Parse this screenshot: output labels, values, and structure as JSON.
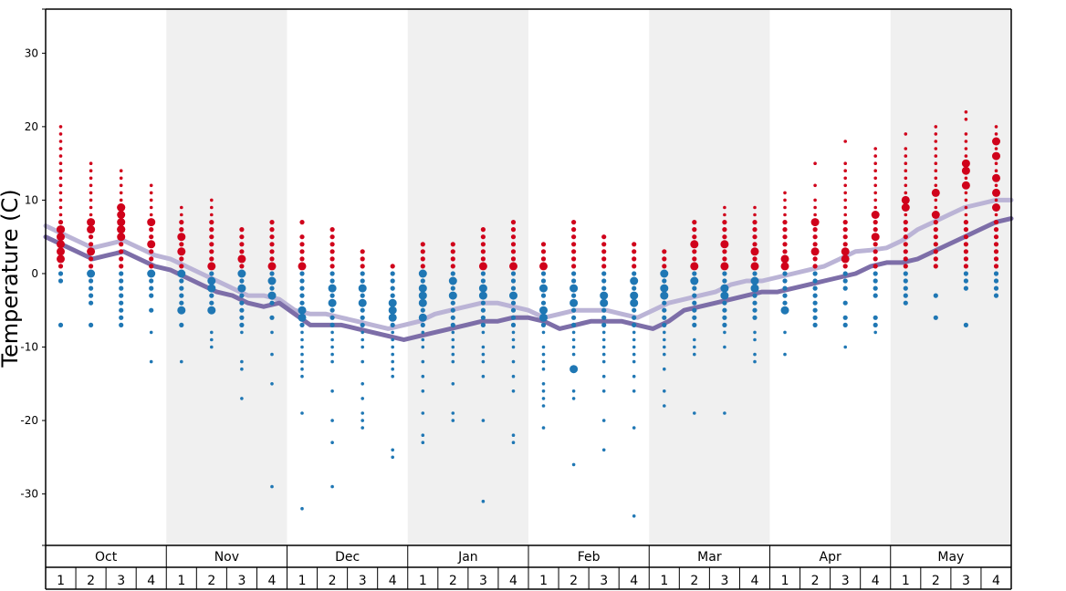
{
  "chart_data": {
    "type": "scatter",
    "title": "",
    "ylabel": "Temperature (C)",
    "xlabel": "",
    "ylim": [
      -37,
      36
    ],
    "yticks": [
      -30,
      -20,
      -10,
      0,
      10,
      20,
      30
    ],
    "months": [
      "Oct",
      "Nov",
      "Dec",
      "Jan",
      "Feb",
      "Mar",
      "Apr",
      "May"
    ],
    "weeks": [
      "1",
      "2",
      "3",
      "4"
    ],
    "shaded_months": [
      "Nov",
      "Jan",
      "Mar",
      "May"
    ],
    "colors": {
      "warm_points": "#d0021b",
      "cold_points": "#1f77b4",
      "upper_line": "#bbb4d6",
      "lower_line": "#7d6ea8",
      "band": "#f0f0f0"
    },
    "series": [
      {
        "values": [
          6.5,
          5.5,
          4.5,
          3.5,
          4,
          4.5,
          3.5,
          2.5,
          2,
          1,
          0,
          -1,
          -2,
          -3,
          -3,
          -3.5,
          -5,
          -5.5,
          -5.5,
          -6,
          -6.5,
          -7,
          -7.5,
          -7,
          -6.5,
          -5.5,
          -5,
          -4.5,
          -4,
          -4,
          -4.5,
          -5,
          -6,
          -5.5,
          -5,
          -5,
          -5,
          -5.5,
          -6,
          -5,
          -4,
          -3.5,
          -3,
          -2.5,
          -1.5,
          -1,
          -1,
          -0.5,
          0,
          0.5,
          1,
          2,
          3,
          3.2,
          3.5,
          4.5,
          6,
          7,
          8,
          9,
          9.5,
          10,
          10
        ]
      },
      {
        "values": [
          5,
          4,
          3,
          2,
          2.5,
          3,
          2,
          1,
          0.5,
          -0.5,
          -1.5,
          -2.5,
          -3,
          -4,
          -4.5,
          -4,
          -5.5,
          -7,
          -7,
          -7,
          -7.5,
          -8,
          -8.5,
          -9,
          -8.5,
          -8,
          -7.5,
          -7,
          -6.5,
          -6.5,
          -6,
          -6,
          -6.5,
          -7.5,
          -7,
          -6.5,
          -6.5,
          -6.5,
          -7,
          -7.5,
          -6.5,
          -5,
          -4.5,
          -4,
          -3.5,
          -3,
          -2.5,
          -2.5,
          -2,
          -1.5,
          -1,
          -0.5,
          0,
          1,
          1.5,
          1.5,
          2,
          3,
          4,
          5,
          6,
          7,
          7.5
        ]
      }
    ],
    "points": [
      {
        "week": 1,
        "values": [
          20,
          19,
          18,
          17,
          17,
          16,
          15,
          14,
          14,
          13,
          12,
          12,
          11,
          10,
          9,
          8,
          7,
          6,
          6,
          5,
          4,
          3,
          2,
          1,
          0,
          -1,
          -7
        ]
      },
      {
        "week": 2,
        "values": [
          15,
          14,
          13,
          12,
          11,
          10,
          9,
          8,
          7,
          6,
          5,
          4,
          3,
          2,
          1,
          0,
          -1,
          -2,
          -3,
          -4,
          -7
        ]
      },
      {
        "week": 3,
        "values": [
          14,
          13,
          12,
          11,
          10,
          9,
          9,
          8,
          7,
          6,
          6,
          5,
          4,
          3,
          2,
          1,
          0,
          -1,
          -2,
          -3,
          -4,
          -5,
          -6,
          -7
        ]
      },
      {
        "week": 4,
        "values": [
          12,
          11,
          10,
          9,
          8,
          7,
          6,
          5,
          4,
          3,
          2,
          1,
          0,
          -1,
          -2,
          -3,
          -5,
          -8,
          -12
        ]
      },
      {
        "week": 5,
        "values": [
          9,
          8,
          7,
          6,
          5,
          4,
          3,
          2,
          1,
          0,
          -1,
          -2,
          -3,
          -4,
          -5,
          -7,
          -12
        ]
      },
      {
        "week": 6,
        "values": [
          10,
          9,
          8,
          7,
          6,
          5,
          4,
          3,
          2,
          1,
          0,
          -1,
          -2,
          -3,
          -4,
          -5,
          -8,
          -9,
          -10
        ]
      },
      {
        "week": 7,
        "values": [
          6,
          5,
          4,
          3,
          2,
          1,
          0,
          -1,
          -2,
          -3,
          -4,
          -5,
          -6,
          -7,
          -8,
          -12,
          -13,
          -17
        ]
      },
      {
        "week": 8,
        "values": [
          7,
          6,
          5,
          4,
          3,
          2,
          1,
          0,
          -1,
          -2,
          -3,
          -4,
          -6,
          -8,
          -11,
          -15,
          -29
        ]
      },
      {
        "week": 9,
        "values": [
          7,
          5,
          4,
          3,
          2,
          1,
          0,
          -1,
          -2,
          -3,
          -4,
          -5,
          -6,
          -7,
          -8,
          -9,
          -10,
          -11,
          -12,
          -13,
          -14,
          -19,
          -32
        ]
      },
      {
        "week": 10,
        "values": [
          6,
          5,
          4,
          3,
          2,
          1,
          0,
          -1,
          -2,
          -3,
          -4,
          -5,
          -6,
          -7,
          -8,
          -9,
          -10,
          -11,
          -12,
          -16,
          -20,
          -23,
          -29
        ]
      },
      {
        "week": 11,
        "values": [
          3,
          2,
          1,
          0,
          -1,
          -2,
          -3,
          -4,
          -5,
          -6,
          -7,
          -8,
          -9,
          -10,
          -12,
          -15,
          -17,
          -19,
          -20,
          -21
        ]
      },
      {
        "week": 12,
        "values": [
          1,
          0,
          -1,
          -2,
          -3,
          -4,
          -5,
          -6,
          -7,
          -8,
          -9,
          -10,
          -11,
          -12,
          -13,
          -14,
          -24,
          -25
        ]
      },
      {
        "week": 13,
        "values": [
          4,
          3,
          2,
          1,
          0,
          -1,
          -2,
          -3,
          -4,
          -5,
          -6,
          -7,
          -8,
          -9,
          -10,
          -12,
          -14,
          -16,
          -19,
          -22,
          -23
        ]
      },
      {
        "week": 14,
        "values": [
          4,
          3,
          2,
          1,
          0,
          -1,
          -2,
          -3,
          -4,
          -5,
          -6,
          -7,
          -8,
          -9,
          -10,
          -11,
          -12,
          -15,
          -19,
          -20
        ]
      },
      {
        "week": 15,
        "values": [
          6,
          5,
          4,
          3,
          2,
          1,
          0,
          -1,
          -2,
          -3,
          -4,
          -5,
          -6,
          -7,
          -8,
          -10,
          -11,
          -12,
          -14,
          -20,
          -31
        ]
      },
      {
        "week": 16,
        "values": [
          7,
          6,
          5,
          4,
          3,
          2,
          1,
          0,
          -1,
          -2,
          -3,
          -4,
          -5,
          -6,
          -7,
          -8,
          -9,
          -10,
          -12,
          -14,
          -16,
          -22,
          -23
        ]
      },
      {
        "week": 17,
        "values": [
          4,
          3,
          2,
          1,
          0,
          -1,
          -2,
          -3,
          -4,
          -5,
          -6,
          -7,
          -8,
          -10,
          -11,
          -12,
          -13,
          -15,
          -16,
          -17,
          -18,
          -21
        ]
      },
      {
        "week": 18,
        "values": [
          7,
          6,
          5,
          4,
          3,
          2,
          1,
          0,
          -1,
          -2,
          -3,
          -4,
          -5,
          -6,
          -7,
          -8,
          -9,
          -10,
          -11,
          -13,
          -16,
          -17,
          -26
        ]
      },
      {
        "week": 19,
        "values": [
          5,
          4,
          3,
          2,
          1,
          0,
          -1,
          -2,
          -3,
          -4,
          -5,
          -6,
          -7,
          -8,
          -9,
          -10,
          -11,
          -12,
          -14,
          -16,
          -20,
          -24
        ]
      },
      {
        "week": 20,
        "values": [
          4,
          3,
          2,
          1,
          0,
          -1,
          -2,
          -3,
          -4,
          -5,
          -6,
          -7,
          -8,
          -9,
          -10,
          -11,
          -12,
          -14,
          -16,
          -21,
          -33
        ]
      },
      {
        "week": 21,
        "values": [
          3,
          2,
          1,
          0,
          -1,
          -2,
          -3,
          -4,
          -5,
          -6,
          -7,
          -8,
          -9,
          -10,
          -11,
          -13,
          -16,
          -18
        ]
      },
      {
        "week": 22,
        "values": [
          7,
          6,
          5,
          4,
          3,
          2,
          1,
          0,
          -1,
          -2,
          -3,
          -4,
          -5,
          -6,
          -7,
          -9,
          -10,
          -11,
          -19
        ]
      },
      {
        "week": 23,
        "values": [
          9,
          8,
          7,
          6,
          5,
          4,
          3,
          2,
          1,
          0,
          -1,
          -2,
          -3,
          -4,
          -5,
          -6,
          -7,
          -8,
          -10,
          -19
        ]
      },
      {
        "week": 24,
        "values": [
          9,
          8,
          7,
          6,
          5,
          4,
          3,
          2,
          1,
          0,
          -1,
          -2,
          -3,
          -4,
          -5,
          -6,
          -8,
          -9,
          -11,
          -12
        ]
      },
      {
        "week": 25,
        "values": [
          11,
          10,
          9,
          8,
          7,
          6,
          5,
          4,
          3,
          2,
          1,
          0,
          -1,
          -2,
          -3,
          -4,
          -5,
          -8,
          -11
        ]
      },
      {
        "week": 26,
        "values": [
          15,
          12,
          10,
          9,
          8,
          7,
          6,
          5,
          4,
          3,
          2,
          1,
          0,
          -1,
          -2,
          -3,
          -4,
          -5,
          -6,
          -7
        ]
      },
      {
        "week": 27,
        "values": [
          18,
          15,
          14,
          13,
          12,
          11,
          10,
          9,
          8,
          7,
          6,
          5,
          4,
          3,
          2,
          1,
          0,
          -1,
          -2,
          -4,
          -6,
          -7,
          -10
        ]
      },
      {
        "week": 28,
        "values": [
          17,
          16,
          15,
          14,
          13,
          12,
          11,
          10,
          9,
          8,
          7,
          6,
          5,
          4,
          3,
          2,
          1,
          0,
          -1,
          -2,
          -3,
          -6,
          -7,
          -8
        ]
      },
      {
        "week": 29,
        "values": [
          19,
          17,
          16,
          15,
          14,
          13,
          12,
          11,
          10,
          9,
          8,
          7,
          6,
          5,
          4,
          3,
          2,
          1,
          0,
          -1,
          -2,
          -3,
          -4
        ]
      },
      {
        "week": 30,
        "values": [
          20,
          19,
          18,
          17,
          16,
          15,
          14,
          13,
          12,
          11,
          10,
          9,
          8,
          7,
          6,
          5,
          4,
          3,
          2,
          1,
          -3,
          -6
        ]
      },
      {
        "week": 31,
        "values": [
          22,
          21,
          19,
          18,
          17,
          16,
          15,
          14,
          13,
          12,
          11,
          10,
          9,
          8,
          7,
          6,
          5,
          4,
          3,
          2,
          1,
          0,
          -1,
          -2,
          -7
        ]
      },
      {
        "week": 32,
        "values": [
          20,
          19,
          18,
          17,
          16,
          15,
          14,
          13,
          12,
          11,
          10,
          9,
          8,
          7,
          6,
          5,
          4,
          3,
          2,
          1,
          0,
          -1,
          -2,
          -3
        ]
      }
    ],
    "sizes": [
      {
        "week": 1,
        "large": [
          6,
          5,
          3,
          4,
          2
        ]
      },
      {
        "week": 2,
        "large": [
          7,
          6,
          3,
          0
        ]
      },
      {
        "week": 3,
        "large": [
          9,
          8,
          7,
          6,
          5
        ]
      },
      {
        "week": 4,
        "large": [
          7,
          4,
          0
        ]
      },
      {
        "week": 5,
        "large": [
          5,
          3,
          0,
          -5
        ]
      },
      {
        "week": 6,
        "large": [
          1,
          -1,
          -2,
          -5
        ]
      },
      {
        "week": 7,
        "large": [
          2,
          0,
          -2
        ]
      },
      {
        "week": 8,
        "large": [
          1,
          -1,
          -3
        ]
      },
      {
        "week": 9,
        "large": [
          1,
          -5,
          -6
        ]
      },
      {
        "week": 10,
        "large": [
          -2,
          -4
        ]
      },
      {
        "week": 11,
        "large": [
          -2,
          -4
        ]
      },
      {
        "week": 12,
        "large": [
          -4,
          -5,
          -6
        ]
      },
      {
        "week": 13,
        "large": [
          0,
          -2,
          -3,
          -4,
          -6
        ]
      },
      {
        "week": 14,
        "large": [
          -1,
          -3
        ]
      },
      {
        "week": 15,
        "large": [
          -2,
          -3,
          1
        ]
      },
      {
        "week": 16,
        "large": [
          -3,
          1
        ]
      },
      {
        "week": 17,
        "large": [
          -2,
          -5,
          -6,
          1
        ]
      },
      {
        "week": 18,
        "large": [
          -2,
          -4,
          -13
        ]
      },
      {
        "week": 19,
        "large": [
          -3,
          -4
        ]
      },
      {
        "week": 20,
        "large": [
          -1,
          -3,
          -4
        ]
      },
      {
        "week": 21,
        "large": [
          -3,
          -2,
          0
        ]
      },
      {
        "week": 22,
        "large": [
          -1,
          1,
          4
        ]
      },
      {
        "week": 23,
        "large": [
          4,
          1,
          -2,
          -3
        ]
      },
      {
        "week": 24,
        "large": [
          3,
          1,
          -1,
          -2
        ]
      },
      {
        "week": 25,
        "large": [
          2,
          1,
          -5
        ]
      },
      {
        "week": 26,
        "large": [
          7,
          3
        ]
      },
      {
        "week": 27,
        "large": [
          3,
          2
        ]
      },
      {
        "week": 28,
        "large": [
          8,
          5
        ]
      },
      {
        "week": 29,
        "large": [
          10,
          9
        ]
      },
      {
        "week": 30,
        "large": [
          11,
          8
        ]
      },
      {
        "week": 31,
        "large": [
          15,
          14,
          12
        ]
      },
      {
        "week": 32,
        "large": [
          18,
          16,
          13,
          11,
          9
        ]
      }
    ]
  }
}
